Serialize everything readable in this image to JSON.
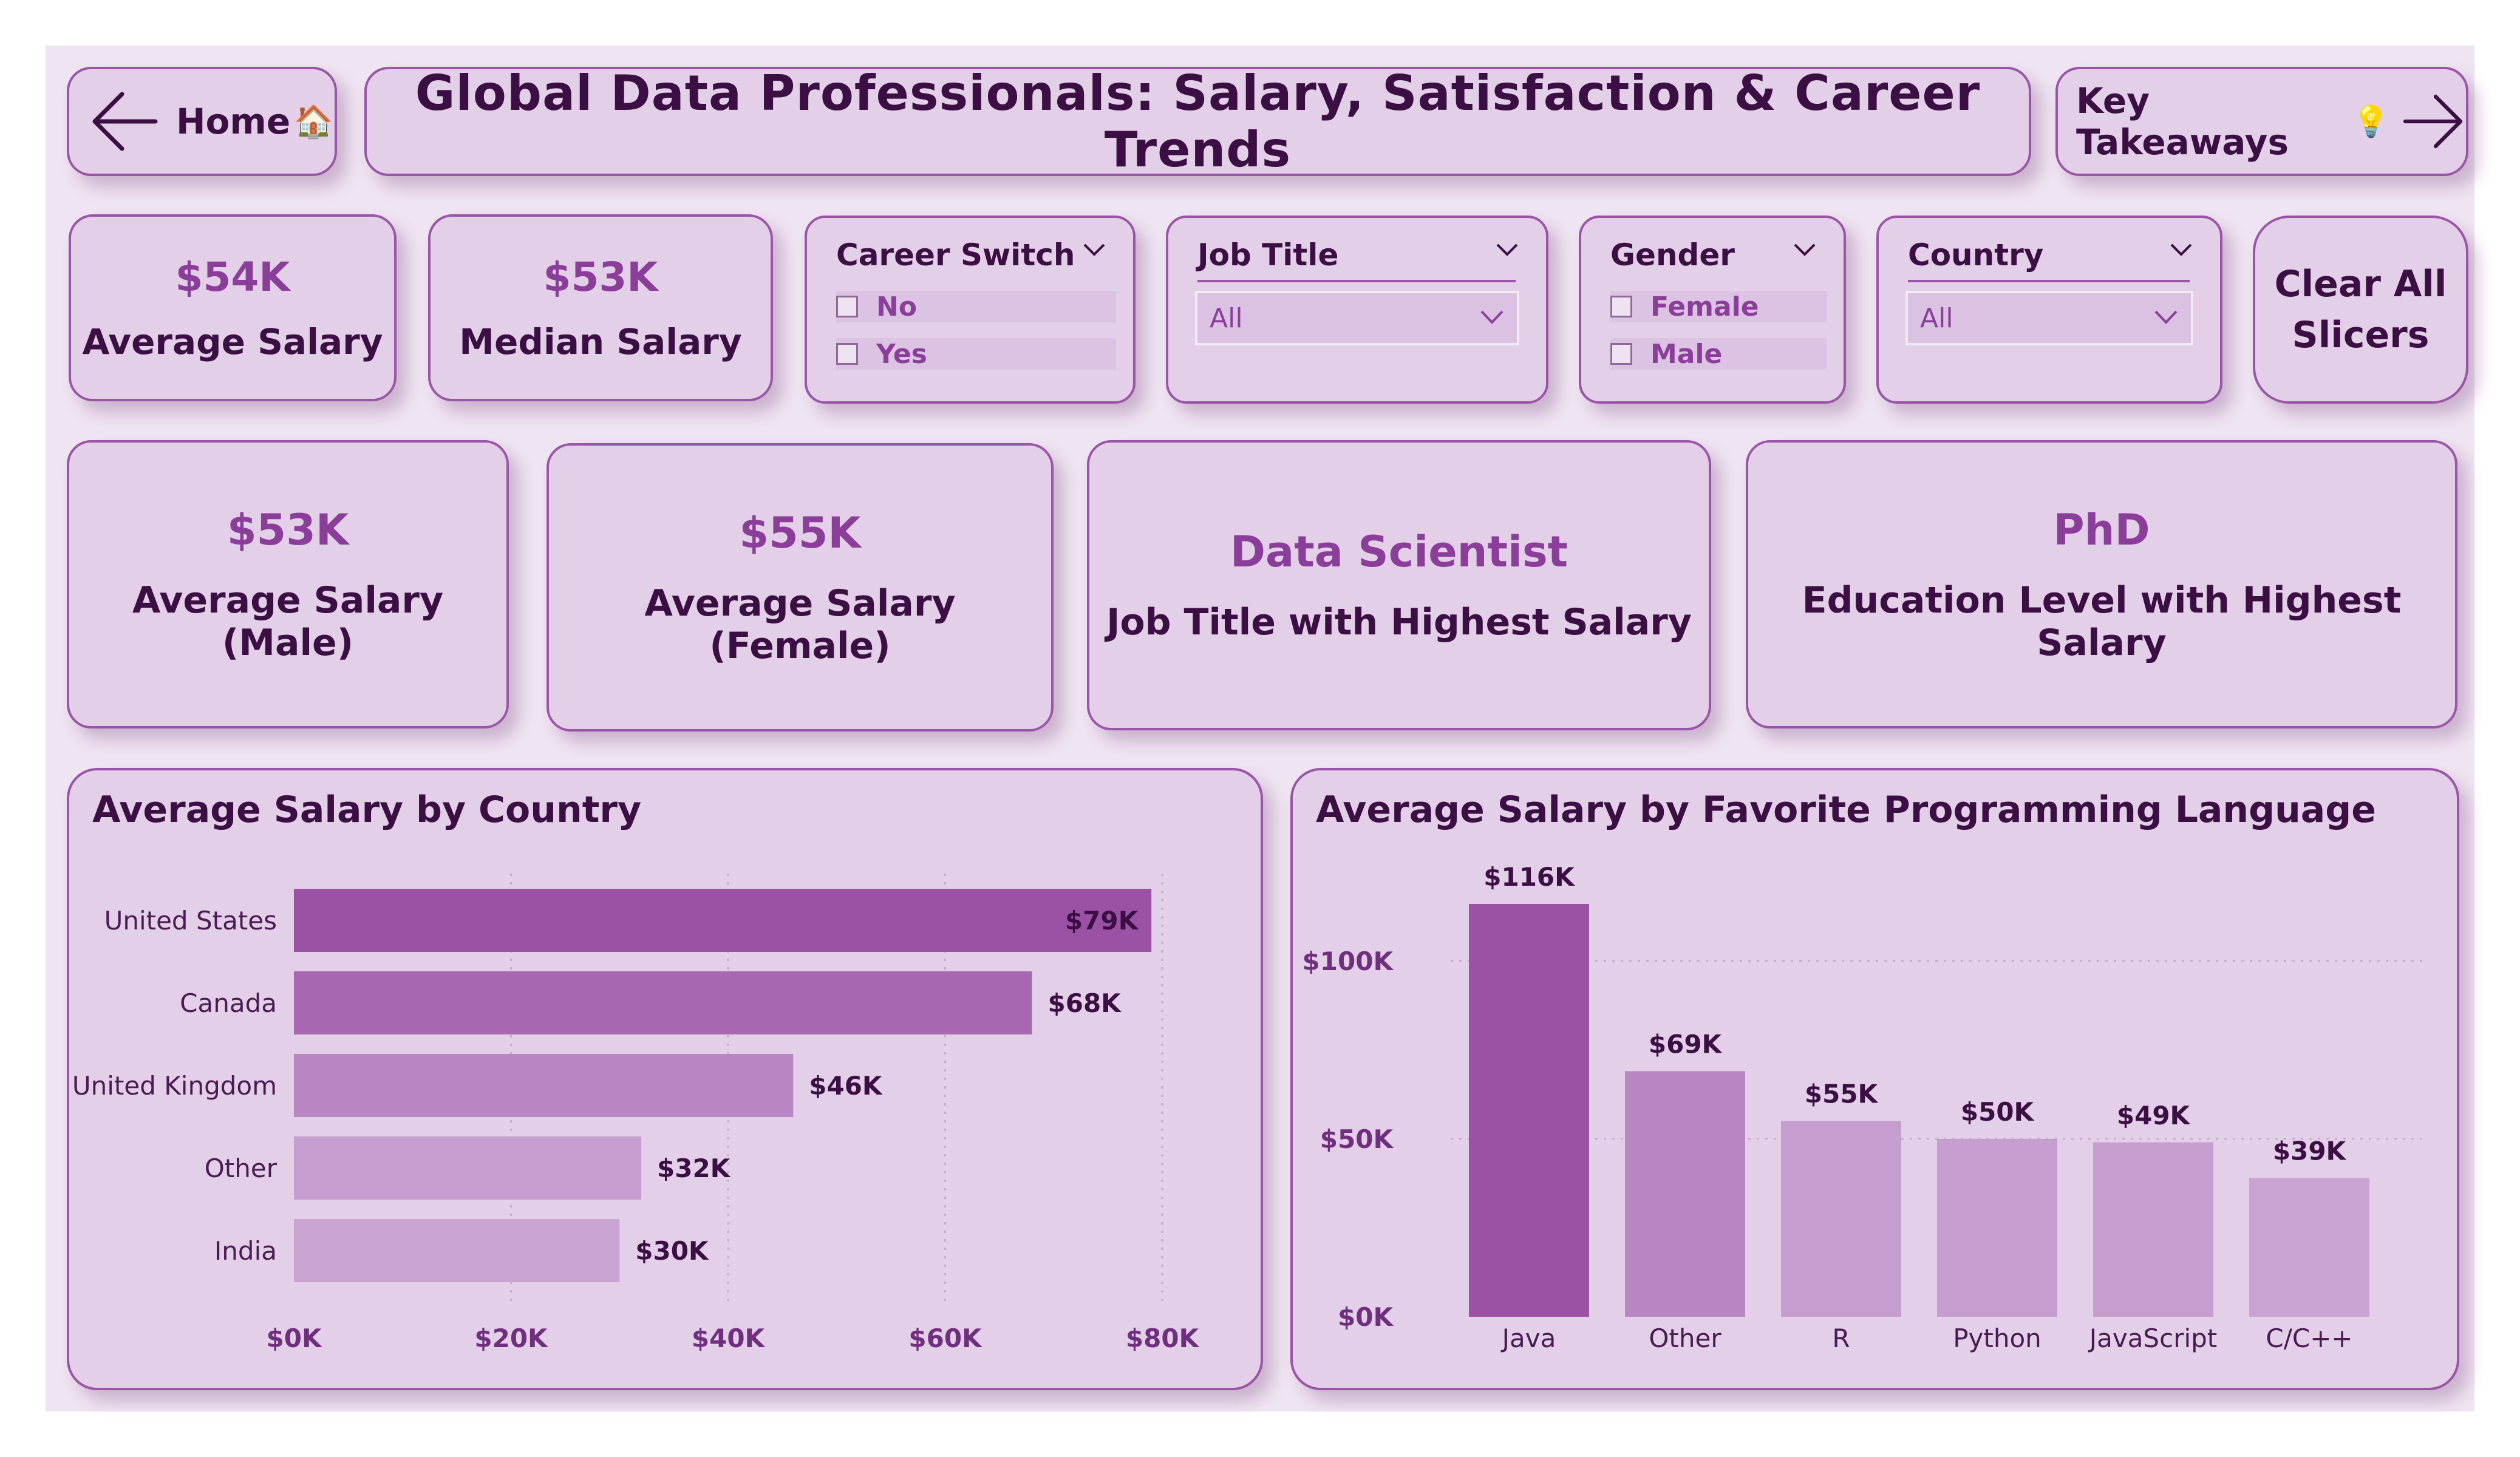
{
  "nav": {
    "home_label": "Home",
    "home_emoji": "🏠",
    "title": "Global Data Professionals: Salary, Satisfaction & Career Trends",
    "takeaways_label": "Key Takeaways",
    "takeaways_emoji": "💡"
  },
  "kpis": {
    "average_salary": {
      "value": "$54K",
      "label": "Average Salary"
    },
    "median_salary": {
      "value": "$53K",
      "label": "Median Salary"
    },
    "male_salary": {
      "value": "$53K",
      "label": "Average Salary (Male)"
    },
    "female_salary": {
      "value": "$55K",
      "label": "Average Salary (Female)"
    },
    "top_job": {
      "value": "Data Scientist",
      "label": "Job Title with Highest Salary"
    },
    "top_education": {
      "value": "PhD",
      "label": "Education Level with Highest Salary"
    }
  },
  "slicers": {
    "career_switch": {
      "title": "Career Switch",
      "options": [
        "No",
        "Yes"
      ]
    },
    "job_title": {
      "title": "Job Title",
      "selected": "All"
    },
    "gender": {
      "title": "Gender",
      "options": [
        "Female",
        "Male"
      ]
    },
    "country": {
      "title": "Country",
      "selected": "All"
    },
    "clear_line1": "Clear All",
    "clear_line2": "Slicers"
  },
  "colors": {
    "accent_dark": "#9b52a5",
    "accent": "#a867b1",
    "accent_mid": "#b886c2",
    "accent_light": "#c69dcf",
    "accent_lighter": "#c9a3d1"
  },
  "chart_data": [
    {
      "type": "bar",
      "orientation": "horizontal",
      "title": "Average Salary by Country",
      "categories": [
        "United States",
        "Canada",
        "United Kingdom",
        "Other",
        "India"
      ],
      "values": [
        79,
        68,
        46,
        32,
        30
      ],
      "data_labels": [
        "$79K",
        "$68K",
        "$46K",
        "$32K",
        "$30K"
      ],
      "xlim": [
        0,
        80
      ],
      "x_ticks": [
        0,
        20,
        40,
        60,
        80
      ],
      "x_tick_labels": [
        "$0K",
        "$20K",
        "$40K",
        "$60K",
        "$80K"
      ],
      "grid": true,
      "legend": "none"
    },
    {
      "type": "bar",
      "orientation": "vertical",
      "title": "Average Salary by Favorite Programming Language",
      "categories": [
        "Java",
        "Other",
        "R",
        "Python",
        "JavaScript",
        "C/C++"
      ],
      "values": [
        116,
        69,
        55,
        50,
        49,
        39
      ],
      "data_labels": [
        "$116K",
        "$69K",
        "$55K",
        "$50K",
        "$49K",
        "$39K"
      ],
      "ylim": [
        0,
        116
      ],
      "y_ticks": [
        0,
        50,
        100
      ],
      "y_tick_labels": [
        "$0K",
        "$50K",
        "$100K"
      ],
      "grid": true,
      "legend": "none"
    }
  ]
}
